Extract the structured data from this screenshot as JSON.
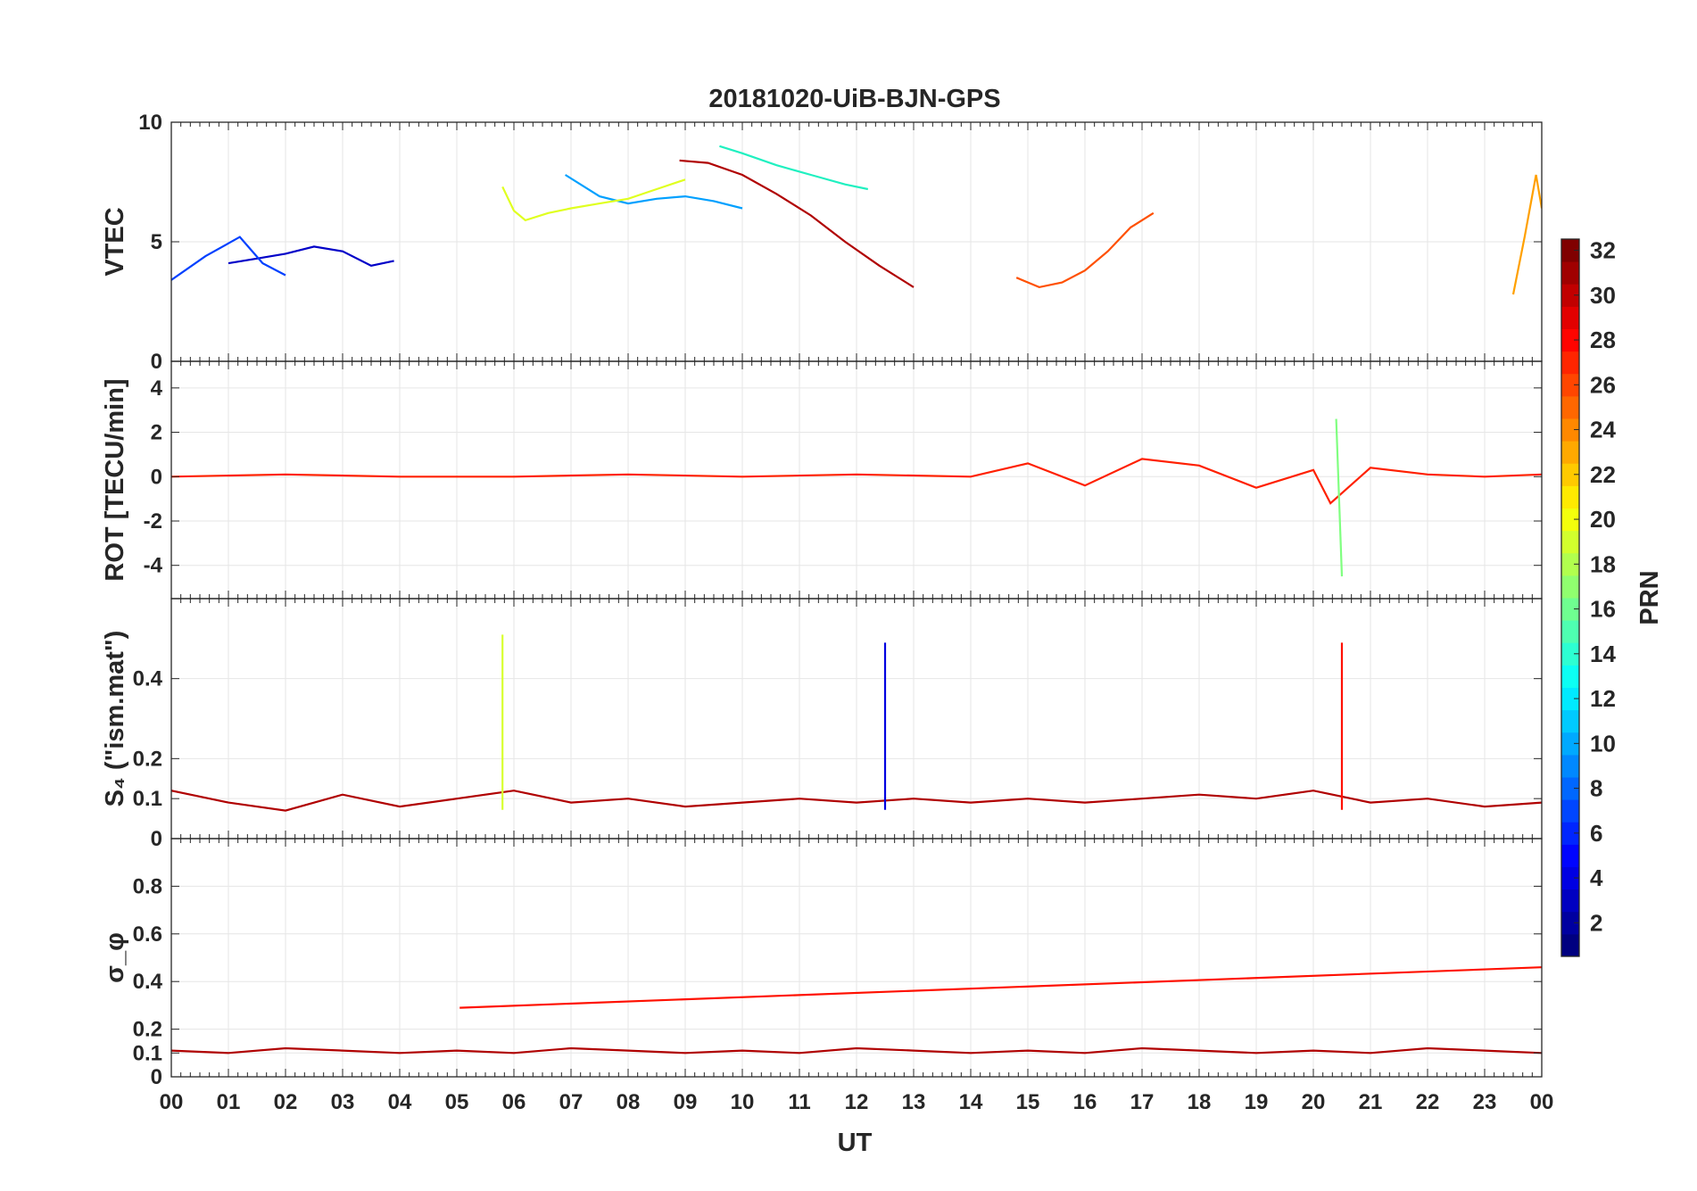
{
  "chart_data": {
    "type": "line",
    "title": "20181020-UiB-BJN-GPS",
    "xlabel": "UT",
    "x_ticks": [
      "00",
      "01",
      "02",
      "03",
      "04",
      "05",
      "06",
      "07",
      "08",
      "09",
      "10",
      "11",
      "12",
      "13",
      "14",
      "15",
      "16",
      "17",
      "18",
      "19",
      "20",
      "21",
      "22",
      "23",
      "00"
    ],
    "xlim": [
      0,
      24
    ],
    "colorbar": {
      "label": "PRN",
      "ticks": [
        2,
        4,
        6,
        8,
        10,
        12,
        14,
        16,
        18,
        20,
        22,
        24,
        26,
        28,
        30,
        32
      ],
      "range": [
        1,
        32
      ],
      "colormap": "jet"
    },
    "panels": [
      {
        "name": "VTEC",
        "ylabel": "VTEC",
        "ylim": [
          0,
          10
        ],
        "yticks": [
          0,
          5,
          10
        ],
        "yticklabels": [
          "0",
          "5",
          "10"
        ],
        "series": [
          {
            "prn": 2,
            "color": "#0000c8",
            "x": [
              1.0,
              1.5,
              2.0,
              2.5,
              3.0,
              3.5,
              3.9
            ],
            "y": [
              4.1,
              4.3,
              4.5,
              4.8,
              4.6,
              4.0,
              4.2
            ]
          },
          {
            "prn": 5,
            "color": "#0040ff",
            "x": [
              0.0,
              0.6,
              1.2,
              1.6,
              2.0
            ],
            "y": [
              3.4,
              4.4,
              5.2,
              4.1,
              3.6
            ]
          },
          {
            "prn": 9,
            "color": "#00a0ff",
            "x": [
              6.9,
              7.5,
              8.0,
              8.5,
              9.0,
              9.5,
              10.0
            ],
            "y": [
              7.8,
              6.9,
              6.6,
              6.8,
              6.9,
              6.7,
              6.4
            ]
          },
          {
            "prn": 14,
            "color": "#20f0c0",
            "x": [
              9.6,
              10.0,
              10.6,
              11.2,
              11.8,
              12.2
            ],
            "y": [
              9.0,
              8.7,
              8.2,
              7.8,
              7.4,
              7.2
            ]
          },
          {
            "prn": 19,
            "color": "#e0ff20",
            "x": [
              5.8,
              6.0,
              6.2,
              6.6,
              7.0,
              7.5,
              8.0,
              8.5,
              9.0
            ],
            "y": [
              7.3,
              6.3,
              5.9,
              6.2,
              6.4,
              6.6,
              6.8,
              7.2,
              7.6
            ]
          },
          {
            "prn": 26,
            "color": "#ff5000",
            "x": [
              14.8,
              15.2,
              15.6,
              16.0,
              16.4,
              16.8,
              17.2
            ],
            "y": [
              3.5,
              3.1,
              3.3,
              3.8,
              4.6,
              5.6,
              6.2
            ]
          },
          {
            "prn": 30,
            "color": "#b00000",
            "x": [
              8.9,
              9.4,
              10.0,
              10.6,
              11.2,
              11.8,
              12.4,
              13.0
            ],
            "y": [
              8.4,
              8.3,
              7.8,
              7.0,
              6.1,
              5.0,
              4.0,
              3.1
            ]
          },
          {
            "prn": 22,
            "color": "#ffa000",
            "x": [
              23.5,
              23.7,
              23.9,
              24.0
            ],
            "y": [
              2.8,
              5.2,
              7.8,
              6.4
            ]
          }
        ]
      },
      {
        "name": "ROT",
        "ylabel": "ROT [TECU/min]",
        "ylim": [
          -5.5,
          5.2
        ],
        "yticks": [
          -4,
          -2,
          0,
          2,
          4
        ],
        "yticklabels": [
          "-4",
          "-2",
          "0",
          "2",
          "4"
        ],
        "series": [
          {
            "prn": 28,
            "color": "#ff2000",
            "x": [
              0,
              2,
              4,
              6,
              8,
              10,
              12,
              14,
              15,
              16,
              17,
              18,
              19,
              20,
              20.3,
              21,
              22,
              23,
              24
            ],
            "y": [
              0,
              0.1,
              0,
              0,
              0.1,
              0,
              0.1,
              0,
              0.6,
              -0.4,
              0.8,
              0.5,
              -0.5,
              0.3,
              -1.2,
              0.4,
              0.1,
              0,
              0.1
            ]
          },
          {
            "prn": 16,
            "color": "#80ff80",
            "x": [
              20.4,
              20.5
            ],
            "y": [
              2.6,
              -4.5
            ]
          }
        ]
      },
      {
        "name": "S4",
        "ylabel": "S₄ (\"ism.mat\")",
        "ylim": [
          0,
          0.6
        ],
        "yticks": [
          0,
          0.1,
          0.2,
          0.4
        ],
        "yticklabels": [
          "0",
          "0.1",
          "0.2",
          "0.4"
        ],
        "series": [
          {
            "prn": 30,
            "color": "#b00000",
            "x": [
              0,
              1,
              2,
              3,
              4,
              5,
              6,
              7,
              8,
              9,
              10,
              11,
              12,
              13,
              14,
              15,
              16,
              17,
              18,
              19,
              20,
              21,
              22,
              23,
              24
            ],
            "y": [
              0.12,
              0.09,
              0.07,
              0.11,
              0.08,
              0.1,
              0.12,
              0.09,
              0.1,
              0.08,
              0.09,
              0.1,
              0.09,
              0.1,
              0.09,
              0.1,
              0.09,
              0.1,
              0.11,
              0.1,
              0.12,
              0.09,
              0.1,
              0.08,
              0.09
            ]
          },
          {
            "prn": 3,
            "color": "#0000e0",
            "x": [
              12.5
            ],
            "y": [
              0.49
            ]
          },
          {
            "prn": 19,
            "color": "#d8ff30",
            "x": [
              5.8
            ],
            "y": [
              0.51
            ]
          },
          {
            "prn": 28,
            "color": "#ff1000",
            "x": [
              20.5
            ],
            "y": [
              0.49
            ]
          }
        ]
      },
      {
        "name": "sigma_phi",
        "ylabel": "σ_φ",
        "ylim": [
          0,
          1
        ],
        "yticks": [
          0,
          0.1,
          0.2,
          0.4,
          0.6,
          0.8
        ],
        "yticklabels": [
          "0",
          "0.1",
          "0.2",
          "0.4",
          "0.6",
          "0.8"
        ],
        "series": [
          {
            "prn": 30,
            "color": "#b00000",
            "x": [
              0,
              1,
              2,
              3,
              4,
              5,
              6,
              7,
              8,
              9,
              10,
              11,
              12,
              13,
              14,
              15,
              16,
              17,
              18,
              19,
              20,
              21,
              22,
              23,
              24
            ],
            "y": [
              0.11,
              0.1,
              0.12,
              0.11,
              0.1,
              0.11,
              0.1,
              0.12,
              0.11,
              0.1,
              0.11,
              0.1,
              0.12,
              0.11,
              0.1,
              0.11,
              0.1,
              0.12,
              0.11,
              0.1,
              0.11,
              0.1,
              0.12,
              0.11,
              0.1
            ]
          },
          {
            "prn": 28,
            "color": "#ff1000",
            "x": [
              5.05,
              24.0
            ],
            "y": [
              0.29,
              0.46
            ]
          }
        ]
      }
    ]
  }
}
